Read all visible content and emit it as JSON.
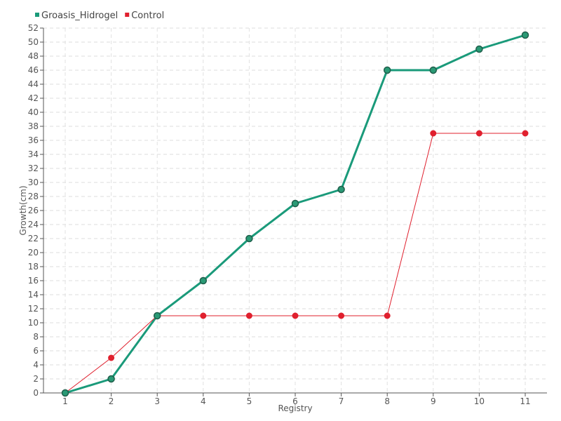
{
  "chart_data": {
    "type": "line",
    "x": [
      1,
      2,
      3,
      4,
      5,
      6,
      7,
      8,
      9,
      10,
      11
    ],
    "series": [
      {
        "name": "Groasis_Hidrogel",
        "color": "#1a9a7a",
        "values": [
          0,
          2,
          11,
          16,
          22,
          27,
          29,
          46,
          46,
          49,
          51
        ]
      },
      {
        "name": "Control",
        "color": "#e0202e",
        "values": [
          0,
          5,
          11,
          11,
          11,
          11,
          11,
          11,
          37,
          37,
          37
        ]
      }
    ],
    "xlabel": "Registry",
    "ylabel": "Growth(cm)",
    "ylim": [
      0,
      52
    ],
    "ytick_step": 2,
    "grid": true,
    "legend_position": "top-left"
  }
}
